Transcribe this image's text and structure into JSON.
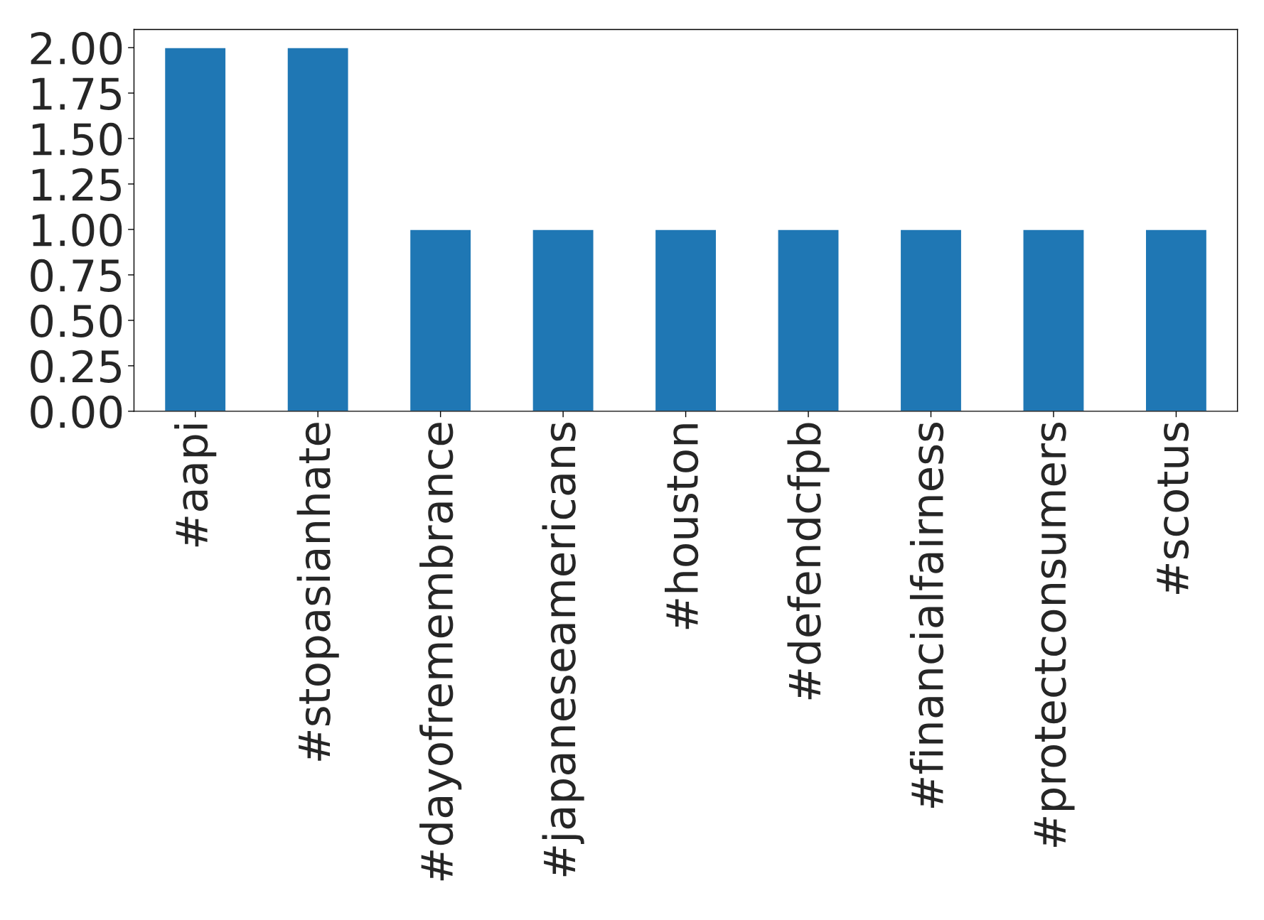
{
  "chart_data": {
    "type": "bar",
    "categories": [
      "#aapi",
      "#stopasianhate",
      "#dayofremembrance",
      "#japaneseamericans",
      "#houston",
      "#defendcfpb",
      "#financialfairness",
      "#protectconsumers",
      "#scotus"
    ],
    "values": [
      2,
      2,
      1,
      1,
      1,
      1,
      1,
      1,
      1
    ],
    "color": "#1f77b4",
    "ylim": [
      0,
      2.1
    ],
    "yticks": [
      {
        "value": 0,
        "label": "0.00"
      },
      {
        "value": 0.25,
        "label": "0.25"
      },
      {
        "value": 0.5,
        "label": "0.50"
      },
      {
        "value": 0.75,
        "label": "0.75"
      },
      {
        "value": 1,
        "label": "1.00"
      },
      {
        "value": 1.25,
        "label": "1.25"
      },
      {
        "value": 1.5,
        "label": "1.50"
      },
      {
        "value": 1.75,
        "label": "1.75"
      },
      {
        "value": 2,
        "label": "2.00"
      }
    ],
    "grid": false,
    "legend": false
  }
}
